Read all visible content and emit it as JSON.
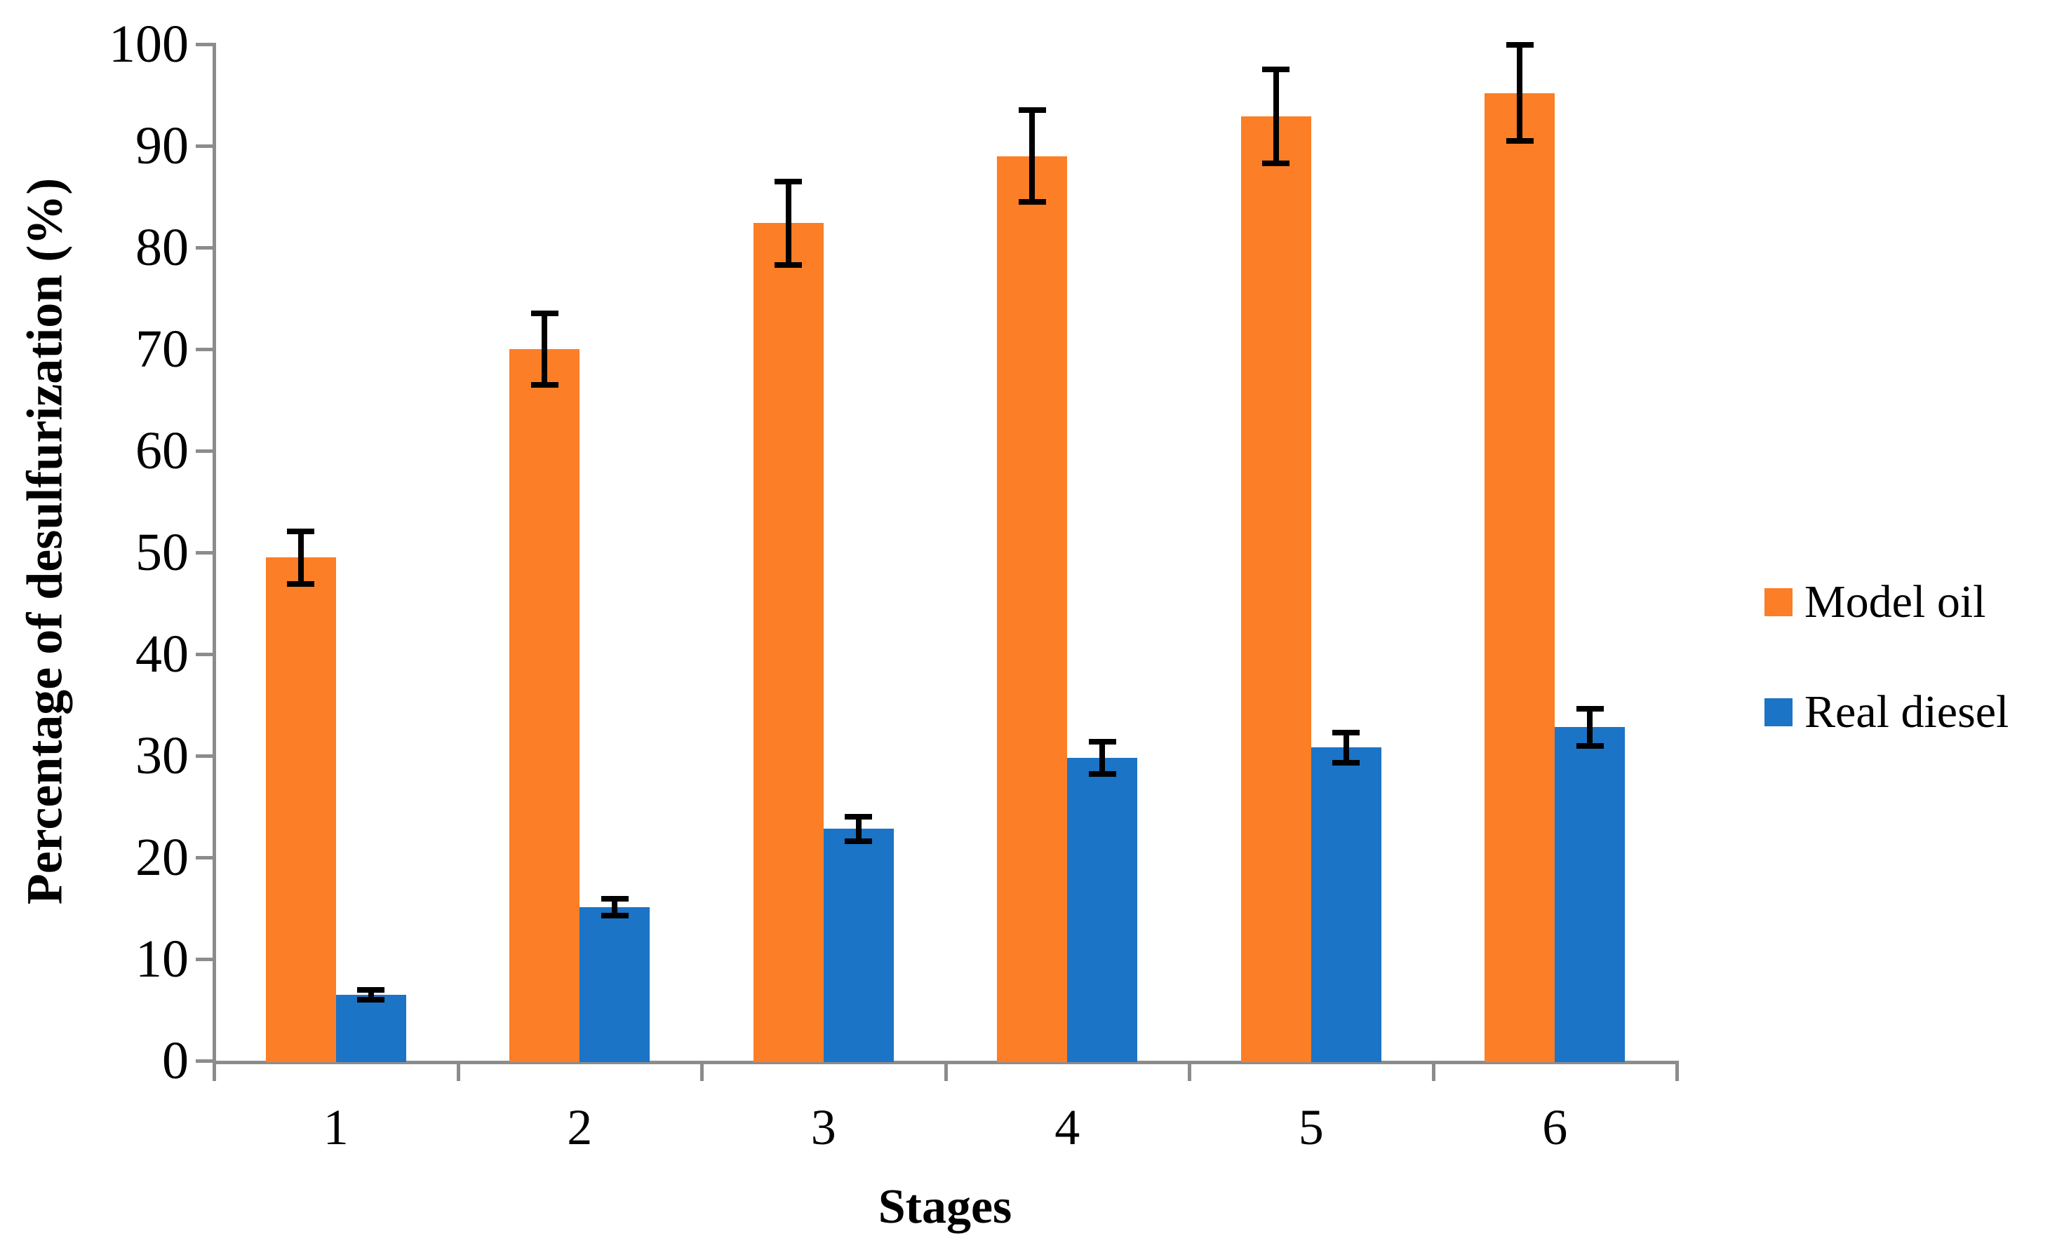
{
  "chart_data": {
    "type": "bar",
    "title": "",
    "xlabel": "Stages",
    "ylabel": "Percentage of desulfurization (%)",
    "categories": [
      "1",
      "2",
      "3",
      "4",
      "5",
      "6"
    ],
    "series": [
      {
        "name": "Model oil",
        "color": "#FC7E26",
        "values": [
          49.5,
          70.0,
          82.4,
          89.0,
          92.9,
          95.2
        ],
        "errors": [
          2.6,
          3.5,
          4.1,
          4.5,
          4.6,
          4.7
        ]
      },
      {
        "name": "Real diesel",
        "color": "#1B74C6",
        "values": [
          6.5,
          15.1,
          22.8,
          29.8,
          30.8,
          32.8
        ],
        "errors": [
          0.5,
          0.8,
          1.2,
          1.6,
          1.5,
          1.8
        ]
      }
    ],
    "ylim": [
      0,
      100
    ],
    "y_ticks": [
      0,
      10,
      20,
      30,
      40,
      50,
      60,
      70,
      80,
      90,
      100
    ],
    "grid": false,
    "legend_position": "right",
    "error_bar_color": "#000000",
    "axis_color": "#8C8C8C",
    "text_color": "#000000",
    "background_color": "#FFFFFF"
  }
}
